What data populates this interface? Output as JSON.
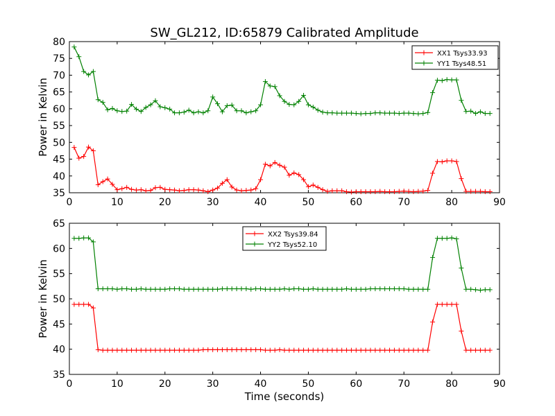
{
  "figure": {
    "title": "SW_GL212, ID:65879 Calibrated Amplitude"
  },
  "chart_data": [
    {
      "type": "line",
      "title": "SW_GL212, ID:65879 Calibrated Amplitude",
      "xlabel": "",
      "ylabel": "Power in Kelvin",
      "xlim": [
        0,
        90
      ],
      "ylim": [
        35,
        80
      ],
      "xticks": [
        "0",
        "10",
        "20",
        "30",
        "40",
        "50",
        "60",
        "70",
        "80",
        "90"
      ],
      "yticks": [
        "35",
        "40",
        "45",
        "50",
        "55",
        "60",
        "65",
        "70",
        "75",
        "80"
      ],
      "legend_position": "top-right",
      "grid": false,
      "x": [
        1,
        2,
        3,
        4,
        5,
        6,
        7,
        8,
        9,
        10,
        11,
        12,
        13,
        14,
        15,
        16,
        17,
        18,
        19,
        20,
        21,
        22,
        23,
        24,
        25,
        26,
        27,
        28,
        29,
        30,
        31,
        32,
        33,
        34,
        35,
        36,
        37,
        38,
        39,
        40,
        41,
        42,
        43,
        44,
        45,
        46,
        47,
        48,
        49,
        50,
        51,
        52,
        53,
        54,
        55,
        56,
        57,
        58,
        59,
        60,
        61,
        62,
        63,
        64,
        65,
        66,
        67,
        68,
        69,
        70,
        71,
        72,
        73,
        74,
        75,
        76,
        77,
        78,
        79,
        80,
        81,
        82,
        83,
        84,
        85,
        86,
        87,
        88
      ],
      "series": [
        {
          "name": "XX1 Tsys33.93",
          "color": "#ff0000",
          "values": [
            48.5,
            45.3,
            45.8,
            48.6,
            47.5,
            37.4,
            38.3,
            39.1,
            37.5,
            35.9,
            36.2,
            36.6,
            36.0,
            35.8,
            35.9,
            35.6,
            35.7,
            36.5,
            36.6,
            36.0,
            35.9,
            35.8,
            35.6,
            35.7,
            35.9,
            35.9,
            35.8,
            35.6,
            35.3,
            35.8,
            36.4,
            37.8,
            38.9,
            36.7,
            35.8,
            35.6,
            35.7,
            35.8,
            36.2,
            38.9,
            43.5,
            43.0,
            44.0,
            43.2,
            42.6,
            40.2,
            40.9,
            40.4,
            38.9,
            36.8,
            37.3,
            36.6,
            35.9,
            35.4,
            35.6,
            35.6,
            35.6,
            35.3,
            35.2,
            35.3,
            35.3,
            35.3,
            35.3,
            35.3,
            35.4,
            35.3,
            35.3,
            35.3,
            35.4,
            35.5,
            35.4,
            35.3,
            35.4,
            35.5,
            35.7,
            40.8,
            44.3,
            44.2,
            44.5,
            44.5,
            44.3,
            39.2,
            35.4,
            35.4,
            35.4,
            35.4,
            35.3,
            35.3
          ]
        },
        {
          "name": "YY1 Tsys48.51",
          "color": "#008000",
          "values": [
            78.4,
            75.5,
            71.1,
            70.1,
            71.1,
            62.7,
            61.9,
            59.7,
            60.1,
            59.4,
            59.2,
            59.3,
            61.3,
            59.9,
            59.2,
            60.4,
            61.2,
            62.4,
            60.6,
            60.3,
            59.9,
            58.8,
            58.8,
            59.0,
            59.6,
            58.8,
            59.1,
            58.8,
            59.4,
            63.5,
            61.5,
            59.1,
            60.9,
            61.1,
            59.4,
            59.4,
            58.8,
            59.1,
            59.4,
            61.2,
            68.1,
            66.8,
            66.6,
            63.9,
            62.2,
            61.3,
            61.2,
            62.2,
            64.0,
            61.2,
            60.5,
            59.6,
            59.0,
            58.8,
            58.8,
            58.7,
            58.7,
            58.7,
            58.7,
            58.6,
            58.5,
            58.6,
            58.6,
            58.8,
            58.8,
            58.7,
            58.7,
            58.7,
            58.6,
            58.7,
            58.7,
            58.6,
            58.5,
            58.6,
            58.9,
            64.8,
            68.5,
            68.4,
            68.7,
            68.6,
            68.6,
            62.5,
            59.2,
            59.3,
            58.6,
            59.1,
            58.6,
            58.6
          ]
        }
      ]
    },
    {
      "type": "line",
      "title": "",
      "xlabel": "Time (seconds)",
      "ylabel": "Power in Kelvin",
      "xlim": [
        0,
        90
      ],
      "ylim": [
        35,
        65
      ],
      "xticks": [
        "0",
        "10",
        "20",
        "30",
        "40",
        "50",
        "60",
        "70",
        "80",
        "90"
      ],
      "yticks": [
        "35",
        "40",
        "45",
        "50",
        "55",
        "60",
        "65"
      ],
      "legend_position": "top-center",
      "grid": false,
      "x": [
        1,
        2,
        3,
        4,
        5,
        6,
        7,
        8,
        9,
        10,
        11,
        12,
        13,
        14,
        15,
        16,
        17,
        18,
        19,
        20,
        21,
        22,
        23,
        24,
        25,
        26,
        27,
        28,
        29,
        30,
        31,
        32,
        33,
        34,
        35,
        36,
        37,
        38,
        39,
        40,
        41,
        42,
        43,
        44,
        45,
        46,
        47,
        48,
        49,
        50,
        51,
        52,
        53,
        54,
        55,
        56,
        57,
        58,
        59,
        60,
        61,
        62,
        63,
        64,
        65,
        66,
        67,
        68,
        69,
        70,
        71,
        72,
        73,
        74,
        75,
        76,
        77,
        78,
        79,
        80,
        81,
        82,
        83,
        84,
        85,
        86,
        87,
        88
      ],
      "series": [
        {
          "name": "XX2 Tsys39.84",
          "color": "#ff0000",
          "values": [
            48.9,
            48.9,
            48.9,
            48.9,
            48.2,
            39.9,
            39.8,
            39.8,
            39.8,
            39.8,
            39.8,
            39.8,
            39.8,
            39.8,
            39.8,
            39.8,
            39.8,
            39.8,
            39.8,
            39.8,
            39.8,
            39.8,
            39.8,
            39.8,
            39.8,
            39.8,
            39.8,
            39.9,
            39.9,
            39.9,
            39.9,
            39.9,
            39.9,
            39.9,
            39.9,
            39.9,
            39.9,
            39.9,
            39.9,
            39.9,
            39.8,
            39.8,
            39.8,
            39.9,
            39.8,
            39.8,
            39.8,
            39.8,
            39.8,
            39.8,
            39.8,
            39.8,
            39.8,
            39.8,
            39.8,
            39.8,
            39.8,
            39.8,
            39.8,
            39.8,
            39.8,
            39.8,
            39.8,
            39.8,
            39.8,
            39.8,
            39.8,
            39.8,
            39.8,
            39.8,
            39.8,
            39.8,
            39.8,
            39.8,
            39.8,
            45.4,
            48.9,
            48.9,
            48.9,
            48.9,
            48.9,
            43.6,
            39.8,
            39.8,
            39.8,
            39.8,
            39.8,
            39.8
          ]
        },
        {
          "name": "YY2 Tsys52.10",
          "color": "#008000",
          "values": [
            62.0,
            62.0,
            62.1,
            62.1,
            61.3,
            52.0,
            52.0,
            52.0,
            52.0,
            51.9,
            52.0,
            52.0,
            51.9,
            51.9,
            52.0,
            51.9,
            51.9,
            51.9,
            51.9,
            51.9,
            52.0,
            52.0,
            52.0,
            51.9,
            51.9,
            51.9,
            51.9,
            51.9,
            51.9,
            51.9,
            51.9,
            52.0,
            52.0,
            52.0,
            52.0,
            52.0,
            52.0,
            51.9,
            52.0,
            52.0,
            51.9,
            51.9,
            51.9,
            51.9,
            52.0,
            51.9,
            52.0,
            52.0,
            51.9,
            51.9,
            52.0,
            51.9,
            51.9,
            51.9,
            51.9,
            51.9,
            51.9,
            52.0,
            51.9,
            51.9,
            51.9,
            51.9,
            52.0,
            52.0,
            52.0,
            52.0,
            52.0,
            52.0,
            52.0,
            52.0,
            51.9,
            51.9,
            51.9,
            51.9,
            51.9,
            58.2,
            62.0,
            62.0,
            62.0,
            62.1,
            61.9,
            56.1,
            51.9,
            51.9,
            51.8,
            51.7,
            51.8,
            51.8
          ]
        }
      ]
    }
  ]
}
